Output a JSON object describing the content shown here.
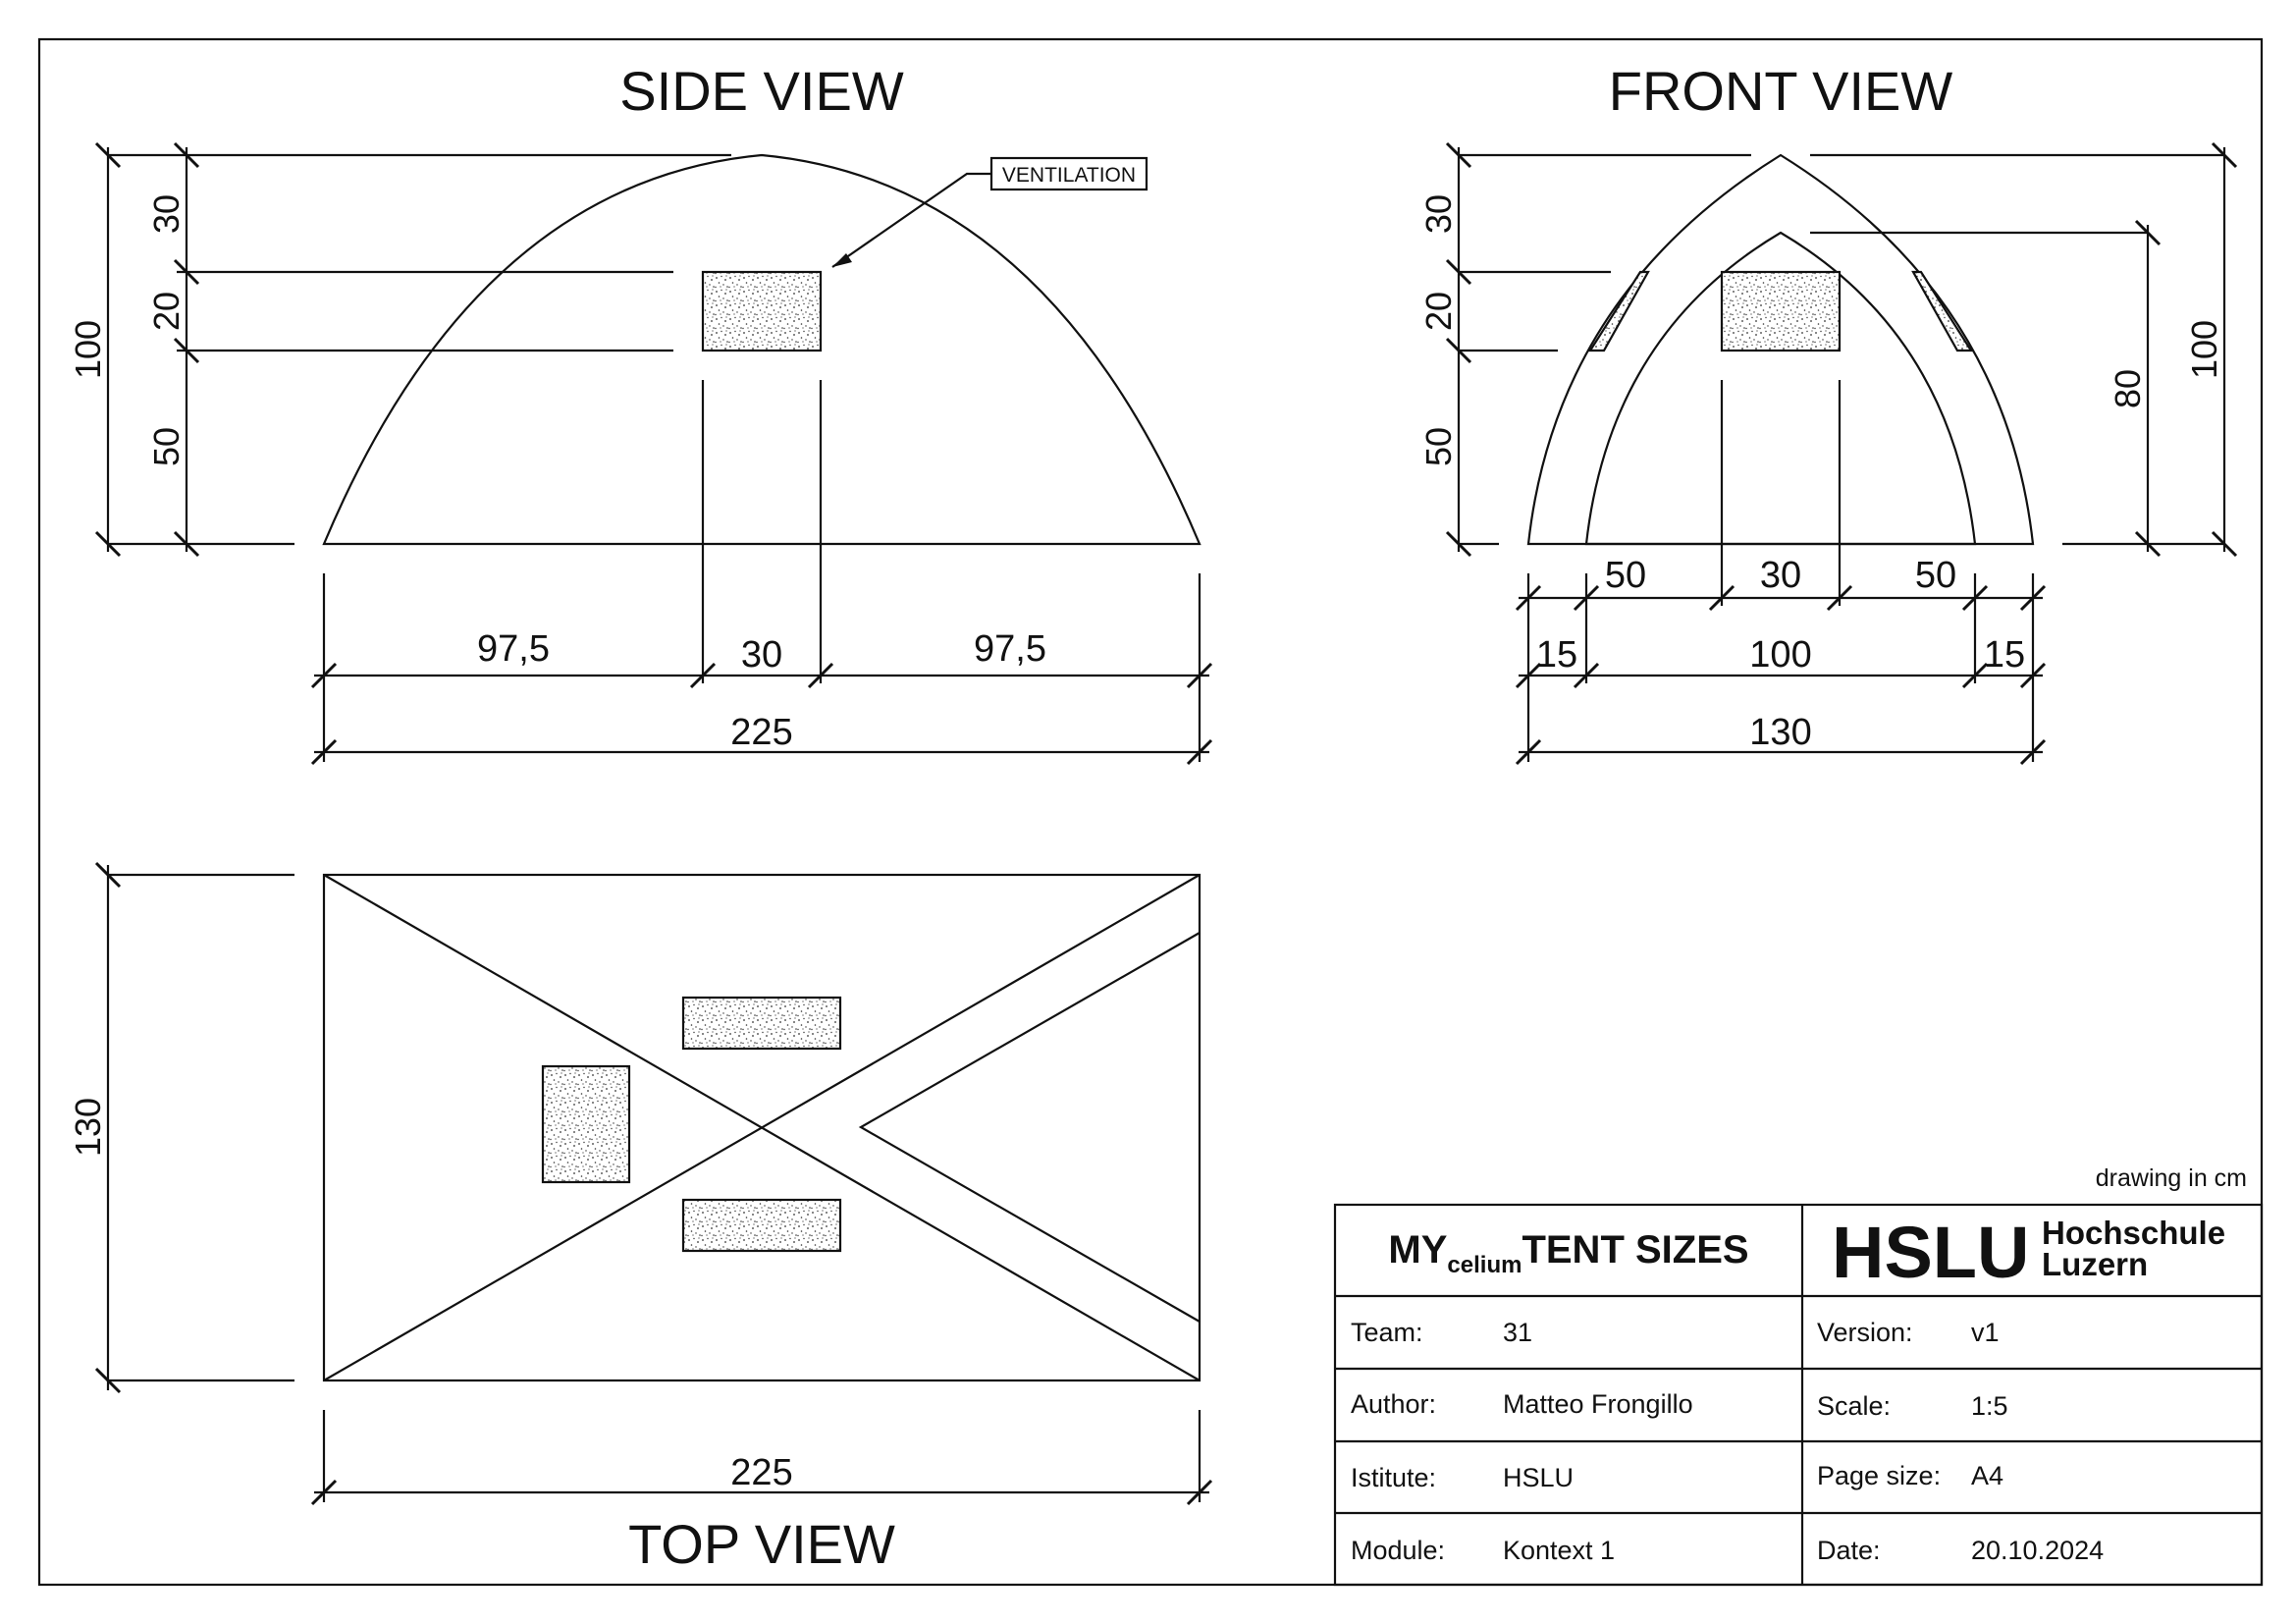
{
  "views": {
    "side": {
      "title": "SIDE VIEW",
      "callout": "VENTILATION",
      "dims": {
        "total_height": "100",
        "top_seg": "30",
        "vent_seg": "20",
        "bottom_seg": "50",
        "left_width": "97,5",
        "vent_width": "30",
        "right_width": "97,5",
        "total_width": "225"
      }
    },
    "front": {
      "title": "FRONT VIEW",
      "dims": {
        "top_seg": "30",
        "vent_seg": "20",
        "bottom_seg": "50",
        "inner_height": "80",
        "total_height": "100",
        "left_inner": "50",
        "vent_width": "30",
        "right_inner": "50",
        "left_wall": "15",
        "inner_width": "100",
        "right_wall": "15",
        "total_width": "130"
      }
    },
    "top": {
      "title": "TOP VIEW",
      "dims": {
        "depth": "130",
        "length": "225"
      }
    }
  },
  "units_note": "drawing in cm",
  "title_block": {
    "title_main_1": "MY",
    "title_sub": "celium",
    "title_main_2": "TENT SIZES",
    "logo_word": "HSLU",
    "logo_line1": "Hochschule",
    "logo_line2": "Luzern",
    "left_rows": [
      {
        "label": "Team:",
        "value": "31"
      },
      {
        "label": "Author:",
        "value": "Matteo Frongillo"
      },
      {
        "label": "Istitute:",
        "value": "HSLU"
      },
      {
        "label": "Module:",
        "value": "Kontext 1"
      }
    ],
    "right_rows": [
      {
        "label": "Version:",
        "value": "v1"
      },
      {
        "label": "Scale:",
        "value": "1:5"
      },
      {
        "label": "Page size:",
        "value": "A4"
      },
      {
        "label": "Date:",
        "value": "20.10.2024"
      }
    ]
  },
  "colors": {
    "line": "#111111",
    "paper": "#ffffff"
  }
}
